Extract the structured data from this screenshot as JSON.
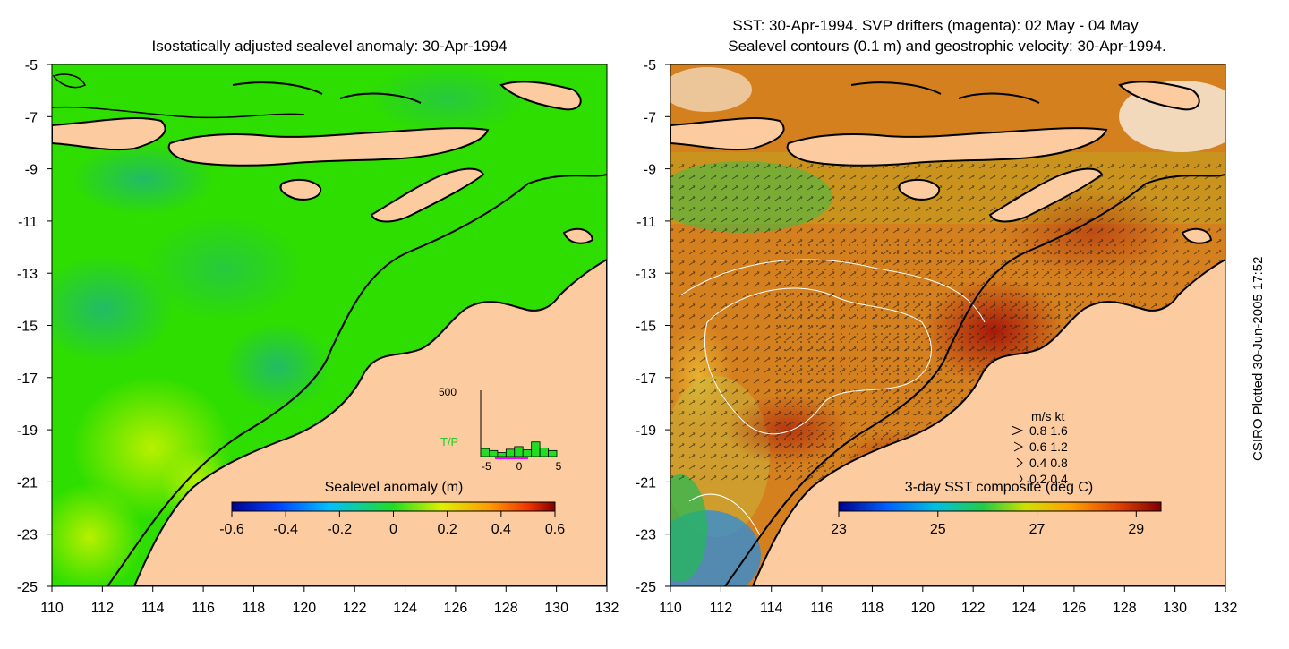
{
  "left_panel": {
    "title": "Isostatically adjusted sealevel anomaly: 30-Apr-1994",
    "colorbar": {
      "label": "Sealevel anomaly (m)",
      "ticks": [
        "-0.6",
        "-0.4",
        "-0.2",
        "0",
        "0.2",
        "0.4",
        "0.6"
      ]
    },
    "inset": {
      "max_label": "500",
      "series_label": "T/P",
      "x_ticks": [
        "-5",
        "0",
        "5"
      ],
      "bars": [
        60,
        45,
        30,
        55,
        75,
        50,
        110,
        65,
        45
      ],
      "colors": {
        "bars": "#22dd22",
        "series_label": "#22cc22",
        "marker": "#ff00ff"
      }
    }
  },
  "right_panel": {
    "title_line1": "SST: 30-Apr-1994. SVP drifters (magenta): 02 May - 04 May",
    "title_line2": "Sealevel contours (0.1 m) and geostrophic velocity: 30-Apr-1994.",
    "colorbar": {
      "label": "3-day SST composite (deg C)",
      "ticks": [
        "23",
        "25",
        "27",
        "29"
      ]
    },
    "legend": {
      "header": "m/s  kt",
      "rows": [
        "0.8  1.6",
        "0.6  1.2",
        "0.4  0.8",
        "0.2  0.4"
      ]
    }
  },
  "axes": {
    "y_ticks": [
      "-5",
      "-7",
      "-9",
      "-11",
      "-13",
      "-15",
      "-17",
      "-19",
      "-21",
      "-23",
      "-25"
    ],
    "x_ticks": [
      "110",
      "112",
      "114",
      "116",
      "118",
      "120",
      "122",
      "124",
      "126",
      "128",
      "130",
      "132"
    ],
    "lon_range": [
      110,
      132
    ],
    "lat_range": [
      -25,
      -5
    ]
  },
  "side_label": "CSIRO Plotted 30-Jun-2005 17:52",
  "colors": {
    "land": "#fccca0",
    "ocean_left": "#22dd00",
    "ocean_right": "#d47a1c",
    "coast": "#000000"
  }
}
